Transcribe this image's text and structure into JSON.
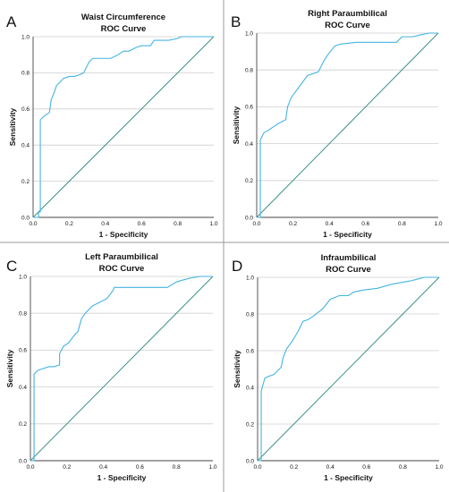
{
  "chart_data": [
    {
      "type": "line",
      "panel_letter": "A",
      "title": "Waist Circumference",
      "subtitle": "ROC Curve",
      "xlabel": "1 - Specificity",
      "ylabel": "Sensitivity",
      "xlim": [
        0,
        1
      ],
      "ylim": [
        0,
        1
      ],
      "xticks": [
        "0.0",
        "0.2",
        "0.4",
        "0.6",
        "0.8",
        "1.0"
      ],
      "yticks": [
        "0.0",
        "0.2",
        "0.4",
        "0.6",
        "0.8",
        "1.0"
      ],
      "grid": true,
      "reference_line": {
        "x": [
          0,
          1
        ],
        "y": [
          0,
          1
        ]
      },
      "series": [
        {
          "x": [
            0,
            0.03,
            0.03,
            0.04,
            0.04,
            0.06,
            0.09,
            0.1,
            0.12,
            0.13,
            0.15,
            0.17,
            0.2,
            0.23,
            0.26,
            0.28,
            0.31,
            0.33,
            0.36,
            0.43,
            0.47,
            0.5,
            0.53,
            0.57,
            0.6,
            0.65,
            0.67,
            0.72,
            0.75,
            0.8,
            0.82,
            1.0
          ],
          "y": [
            0,
            0,
            0.03,
            0.03,
            0.54,
            0.56,
            0.58,
            0.65,
            0.7,
            0.73,
            0.75,
            0.77,
            0.78,
            0.78,
            0.79,
            0.8,
            0.86,
            0.88,
            0.88,
            0.88,
            0.9,
            0.92,
            0.92,
            0.94,
            0.95,
            0.95,
            0.98,
            0.98,
            0.98,
            0.99,
            1.0,
            1.0
          ],
          "color": "#45b4e0"
        }
      ]
    },
    {
      "type": "line",
      "panel_letter": "B",
      "title": "Right Paraumbilical",
      "subtitle": "ROC Curve",
      "xlabel": "1 - Specificity",
      "ylabel": "Sensitivity",
      "xlim": [
        0,
        1
      ],
      "ylim": [
        0,
        1
      ],
      "xticks": [
        "0.0",
        "0.2",
        "0.4",
        "0.6",
        "0.8",
        "1.0"
      ],
      "yticks": [
        "0.0",
        "0.2",
        "0.4",
        "0.6",
        "0.8",
        "1.0"
      ],
      "grid": true,
      "reference_line": {
        "x": [
          0,
          1
        ],
        "y": [
          0,
          1
        ]
      },
      "series": [
        {
          "x": [
            0,
            0.02,
            0.02,
            0.04,
            0.06,
            0.09,
            0.12,
            0.14,
            0.16,
            0.17,
            0.19,
            0.22,
            0.25,
            0.28,
            0.31,
            0.34,
            0.37,
            0.39,
            0.43,
            0.46,
            0.55,
            0.66,
            0.77,
            0.8,
            0.86,
            0.9,
            0.95,
            1.0
          ],
          "y": [
            0,
            0,
            0.42,
            0.46,
            0.47,
            0.49,
            0.51,
            0.52,
            0.53,
            0.6,
            0.65,
            0.69,
            0.73,
            0.77,
            0.78,
            0.79,
            0.85,
            0.88,
            0.93,
            0.94,
            0.95,
            0.95,
            0.95,
            0.98,
            0.98,
            0.99,
            1.0,
            1.0
          ],
          "color": "#45b4e0"
        }
      ]
    },
    {
      "type": "line",
      "panel_letter": "C",
      "title": "Left Paraumbilical",
      "subtitle": "ROC Curve",
      "xlabel": "1 - Specificity",
      "ylabel": "Sensitivity",
      "xlim": [
        0,
        1
      ],
      "ylim": [
        0,
        1
      ],
      "xticks": [
        "0.0",
        "0.2",
        "0.4",
        "0.6",
        "0.8",
        "1.0"
      ],
      "yticks": [
        "0.0",
        "0.2",
        "0.4",
        "0.6",
        "0.8",
        "1.0"
      ],
      "grid": true,
      "reference_line": {
        "x": [
          0,
          1
        ],
        "y": [
          0,
          1
        ]
      },
      "series": [
        {
          "x": [
            0,
            0.02,
            0.02,
            0.04,
            0.07,
            0.1,
            0.13,
            0.16,
            0.16,
            0.18,
            0.21,
            0.24,
            0.26,
            0.28,
            0.3,
            0.34,
            0.38,
            0.42,
            0.45,
            0.46,
            0.55,
            0.66,
            0.75,
            0.8,
            0.87,
            0.93,
            1.0
          ],
          "y": [
            0,
            0,
            0.47,
            0.49,
            0.5,
            0.51,
            0.51,
            0.52,
            0.58,
            0.62,
            0.64,
            0.68,
            0.7,
            0.77,
            0.8,
            0.84,
            0.86,
            0.88,
            0.92,
            0.94,
            0.94,
            0.94,
            0.94,
            0.97,
            0.99,
            1.0,
            1.0
          ],
          "color": "#45b4e0"
        }
      ]
    },
    {
      "type": "line",
      "panel_letter": "D",
      "title": "Infraumbilical",
      "subtitle": "ROC Curve",
      "xlabel": "1 - Specificity",
      "ylabel": "Sensitivity",
      "xlim": [
        0,
        1
      ],
      "ylim": [
        0,
        1
      ],
      "xticks": [
        "0.0",
        "0.2",
        "0.4",
        "0.6",
        "0.8",
        "1.0"
      ],
      "yticks": [
        "0.0",
        "0.2",
        "0.4",
        "0.6",
        "0.8",
        "1.0"
      ],
      "grid": true,
      "reference_line": {
        "x": [
          0,
          1
        ],
        "y": [
          0,
          1
        ]
      },
      "series": [
        {
          "x": [
            0,
            0.02,
            0.02,
            0.04,
            0.06,
            0.09,
            0.11,
            0.13,
            0.14,
            0.16,
            0.19,
            0.22,
            0.25,
            0.28,
            0.31,
            0.36,
            0.4,
            0.45,
            0.5,
            0.53,
            0.58,
            0.66,
            0.73,
            0.78,
            0.84,
            0.88,
            0.92,
            1.0
          ],
          "y": [
            0,
            0,
            0.38,
            0.45,
            0.46,
            0.47,
            0.49,
            0.51,
            0.56,
            0.61,
            0.65,
            0.7,
            0.76,
            0.77,
            0.79,
            0.83,
            0.88,
            0.9,
            0.9,
            0.92,
            0.93,
            0.94,
            0.96,
            0.97,
            0.98,
            0.99,
            1.0,
            1.0
          ],
          "color": "#45b4e0"
        }
      ]
    }
  ]
}
